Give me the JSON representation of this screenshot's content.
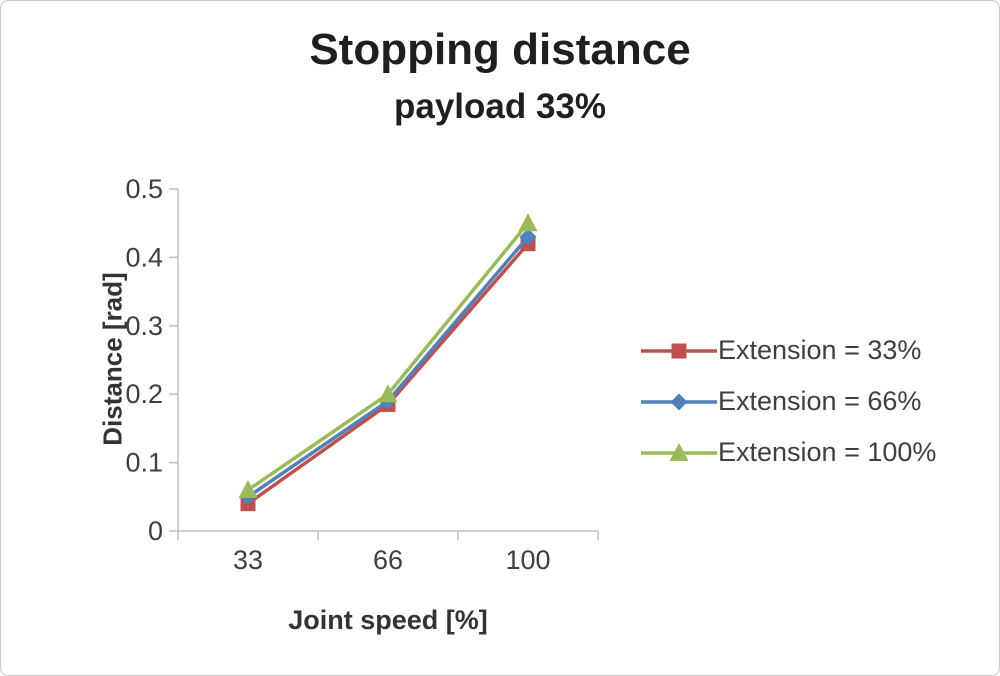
{
  "chart_data": {
    "type": "line",
    "title": "Stopping distance",
    "subtitle": "payload 33%",
    "categories": [
      "33",
      "66",
      "100"
    ],
    "xlabel": "Joint speed [%]",
    "ylabel": "Distance [rad]",
    "ylim": [
      0,
      0.5
    ],
    "yticks": [
      0,
      0.1,
      0.2,
      0.3,
      0.4,
      0.5
    ],
    "ytick_labels": [
      "0",
      "0.1",
      "0.2",
      "0.3",
      "0.4",
      "0.5"
    ],
    "grid": false,
    "legend_position": "right",
    "axis_color": "#bfbfbf",
    "text_color": "#3f3f3f",
    "series": [
      {
        "name": "Extension = 33%",
        "marker": "square",
        "color": "#C0504D",
        "values": [
          0.04,
          0.185,
          0.42
        ]
      },
      {
        "name": "Extension = 66%",
        "marker": "diamond",
        "color": "#4F81BD",
        "values": [
          0.05,
          0.19,
          0.43
        ]
      },
      {
        "name": "Extension = 100%",
        "marker": "triangle",
        "color": "#9BBB59",
        "values": [
          0.06,
          0.2,
          0.45
        ]
      }
    ]
  }
}
